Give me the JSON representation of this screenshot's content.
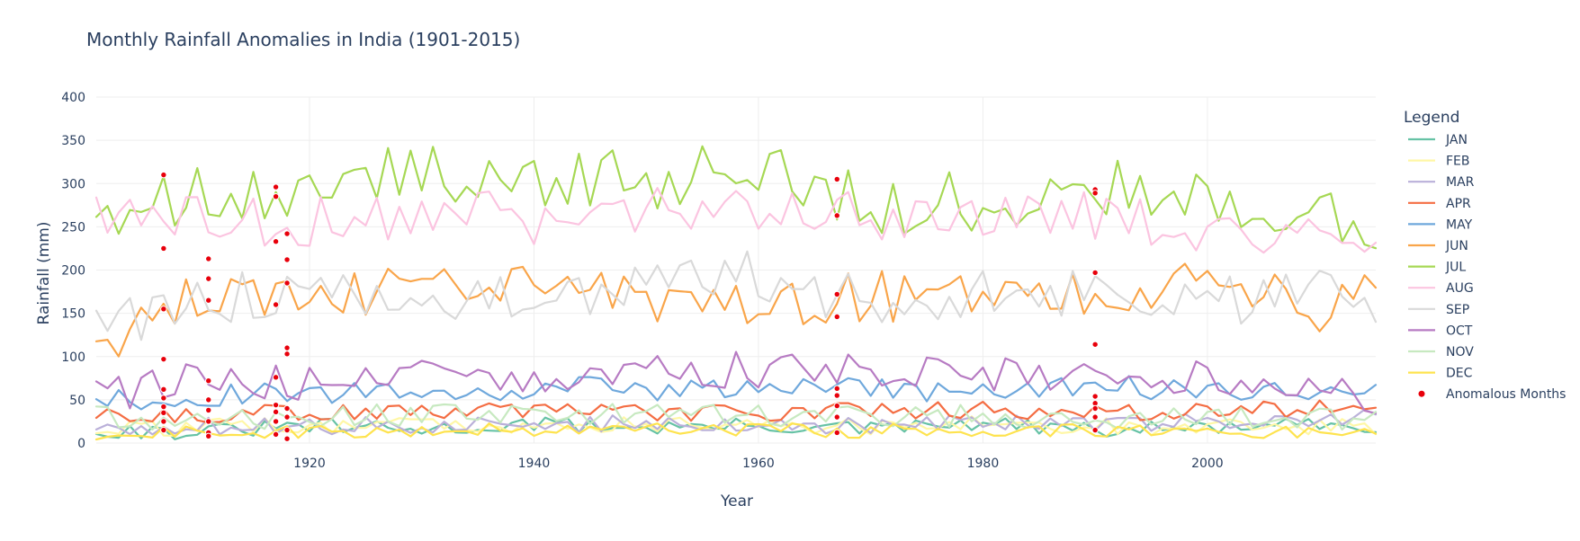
{
  "chart_data": {
    "type": "line",
    "title": "Monthly Rainfall Anomalies in India (1901-2015)",
    "xlabel": "Year",
    "ylabel": "Rainfall (mm)",
    "xlim": [
      1901,
      2015
    ],
    "ylim": [
      0,
      400
    ],
    "x_ticks": [
      1920,
      1940,
      1960,
      1980,
      2000
    ],
    "y_ticks": [
      0,
      50,
      100,
      150,
      200,
      250,
      300,
      350,
      400
    ],
    "grid": true,
    "legend_title": "Legend",
    "legend_position": "right",
    "series": [
      {
        "name": "JAN",
        "color": "#66c2a5",
        "keypoints": [
          [
            1901,
            15
          ],
          [
            1910,
            12
          ],
          [
            1920,
            20
          ],
          [
            1930,
            15
          ],
          [
            1940,
            22
          ],
          [
            1950,
            18
          ],
          [
            1960,
            20
          ],
          [
            1970,
            16
          ],
          [
            1980,
            22
          ],
          [
            1990,
            14
          ],
          [
            2000,
            18
          ],
          [
            2010,
            20
          ],
          [
            2015,
            15
          ]
        ],
        "amp": 9,
        "lo": 2
      },
      {
        "name": "FEB",
        "color": "#fff7a6",
        "keypoints": [
          [
            1901,
            15
          ],
          [
            1910,
            18
          ],
          [
            1920,
            20
          ],
          [
            1930,
            22
          ],
          [
            1940,
            20
          ],
          [
            1950,
            22
          ],
          [
            1960,
            20
          ],
          [
            1970,
            20
          ],
          [
            1980,
            22
          ],
          [
            1990,
            20
          ],
          [
            2000,
            18
          ],
          [
            2010,
            20
          ],
          [
            2015,
            20
          ]
        ],
        "amp": 10,
        "lo": 2
      },
      {
        "name": "MAR",
        "color": "#bab0d9",
        "keypoints": [
          [
            1901,
            18
          ],
          [
            1910,
            20
          ],
          [
            1920,
            18
          ],
          [
            1930,
            22
          ],
          [
            1940,
            20
          ],
          [
            1950,
            25
          ],
          [
            1960,
            22
          ],
          [
            1970,
            20
          ],
          [
            1980,
            25
          ],
          [
            1990,
            22
          ],
          [
            2000,
            25
          ],
          [
            2010,
            28
          ],
          [
            2015,
            30
          ]
        ],
        "amp": 10,
        "lo": 3
      },
      {
        "name": "APR",
        "color": "#f46d43",
        "keypoints": [
          [
            1901,
            30
          ],
          [
            1910,
            33
          ],
          [
            1920,
            35
          ],
          [
            1930,
            38
          ],
          [
            1940,
            35
          ],
          [
            1950,
            35
          ],
          [
            1960,
            35
          ],
          [
            1970,
            38
          ],
          [
            1980,
            38
          ],
          [
            1990,
            35
          ],
          [
            2000,
            38
          ],
          [
            2010,
            40
          ],
          [
            2015,
            45
          ]
        ],
        "amp": 10,
        "lo": 10
      },
      {
        "name": "MAY",
        "color": "#6fa8dc",
        "keypoints": [
          [
            1901,
            50
          ],
          [
            1910,
            55
          ],
          [
            1920,
            55
          ],
          [
            1930,
            60
          ],
          [
            1940,
            65
          ],
          [
            1950,
            62
          ],
          [
            1960,
            65
          ],
          [
            1970,
            62
          ],
          [
            1980,
            60
          ],
          [
            1990,
            65
          ],
          [
            2000,
            60
          ],
          [
            2010,
            58
          ],
          [
            2015,
            55
          ]
        ],
        "amp": 14,
        "lo": 25
      },
      {
        "name": "JUN",
        "color": "#f9a54a",
        "keypoints": [
          [
            1901,
            112
          ],
          [
            1905,
            140
          ],
          [
            1910,
            175
          ],
          [
            1920,
            180
          ],
          [
            1930,
            175
          ],
          [
            1940,
            185
          ],
          [
            1950,
            170
          ],
          [
            1960,
            165
          ],
          [
            1970,
            170
          ],
          [
            1980,
            170
          ],
          [
            1990,
            175
          ],
          [
            2000,
            185
          ],
          [
            2010,
            155
          ],
          [
            2015,
            175
          ]
        ],
        "amp": 30,
        "lo": 85
      },
      {
        "name": "JUL",
        "color": "#a6d854",
        "keypoints": [
          [
            1901,
            250
          ],
          [
            1910,
            285
          ],
          [
            1920,
            300
          ],
          [
            1930,
            310
          ],
          [
            1940,
            310
          ],
          [
            1950,
            305
          ],
          [
            1960,
            315
          ],
          [
            1970,
            275
          ],
          [
            1980,
            280
          ],
          [
            1990,
            300
          ],
          [
            2000,
            280
          ],
          [
            2010,
            275
          ],
          [
            2015,
            245
          ]
        ],
        "amp": 35,
        "lo": 140
      },
      {
        "name": "AUG",
        "color": "#fbc4e0",
        "keypoints": [
          [
            1901,
            270
          ],
          [
            1910,
            260
          ],
          [
            1920,
            255
          ],
          [
            1930,
            265
          ],
          [
            1940,
            260
          ],
          [
            1950,
            265
          ],
          [
            1960,
            270
          ],
          [
            1970,
            260
          ],
          [
            1980,
            260
          ],
          [
            1990,
            265
          ],
          [
            2000,
            235
          ],
          [
            2010,
            265
          ],
          [
            2015,
            210
          ]
        ],
        "amp": 30,
        "lo": 180
      },
      {
        "name": "SEP",
        "color": "#d9d9d9",
        "keypoints": [
          [
            1901,
            135
          ],
          [
            1910,
            165
          ],
          [
            1920,
            180
          ],
          [
            1930,
            175
          ],
          [
            1940,
            170
          ],
          [
            1950,
            175
          ],
          [
            1960,
            195
          ],
          [
            1970,
            160
          ],
          [
            1980,
            170
          ],
          [
            1990,
            175
          ],
          [
            2000,
            160
          ],
          [
            2010,
            185
          ],
          [
            2015,
            140
          ]
        ],
        "amp": 30,
        "lo": 100
      },
      {
        "name": "OCT",
        "color": "#b77bc3",
        "keypoints": [
          [
            1901,
            55
          ],
          [
            1910,
            75
          ],
          [
            1920,
            70
          ],
          [
            1930,
            85
          ],
          [
            1940,
            80
          ],
          [
            1950,
            80
          ],
          [
            1960,
            85
          ],
          [
            1970,
            80
          ],
          [
            1980,
            75
          ],
          [
            1990,
            80
          ],
          [
            2000,
            75
          ],
          [
            2010,
            70
          ],
          [
            2015,
            50
          ]
        ],
        "amp": 22,
        "lo": 30
      },
      {
        "name": "NOV",
        "color": "#c7e9c0",
        "keypoints": [
          [
            1901,
            30
          ],
          [
            1910,
            28
          ],
          [
            1920,
            30
          ],
          [
            1930,
            32
          ],
          [
            1940,
            30
          ],
          [
            1950,
            32
          ],
          [
            1960,
            30
          ],
          [
            1970,
            28
          ],
          [
            1980,
            32
          ],
          [
            1990,
            30
          ],
          [
            2000,
            28
          ],
          [
            2010,
            30
          ],
          [
            2015,
            28
          ]
        ],
        "amp": 14,
        "lo": 3
      },
      {
        "name": "DEC",
        "color": "#fee34f",
        "keypoints": [
          [
            1901,
            12
          ],
          [
            1910,
            12
          ],
          [
            1920,
            14
          ],
          [
            1930,
            15
          ],
          [
            1940,
            15
          ],
          [
            1950,
            16
          ],
          [
            1960,
            15
          ],
          [
            1970,
            14
          ],
          [
            1980,
            15
          ],
          [
            1990,
            14
          ],
          [
            2000,
            12
          ],
          [
            2010,
            14
          ],
          [
            2015,
            12
          ]
        ],
        "amp": 8,
        "lo": 1
      }
    ],
    "anomalies": {
      "name": "Anomalous Months",
      "color": "#e8000b",
      "points": [
        [
          1907,
          310
        ],
        [
          1907,
          225
        ],
        [
          1907,
          155
        ],
        [
          1907,
          97
        ],
        [
          1907,
          62
        ],
        [
          1907,
          52
        ],
        [
          1907,
          42
        ],
        [
          1907,
          35
        ],
        [
          1907,
          25
        ],
        [
          1907,
          15
        ],
        [
          1911,
          213
        ],
        [
          1911,
          190
        ],
        [
          1911,
          165
        ],
        [
          1911,
          72
        ],
        [
          1911,
          50
        ],
        [
          1911,
          38
        ],
        [
          1911,
          25
        ],
        [
          1911,
          12
        ],
        [
          1911,
          8
        ],
        [
          1917,
          296
        ],
        [
          1917,
          285
        ],
        [
          1917,
          233
        ],
        [
          1917,
          160
        ],
        [
          1917,
          76
        ],
        [
          1917,
          44
        ],
        [
          1917,
          36
        ],
        [
          1917,
          25
        ],
        [
          1917,
          10
        ],
        [
          1918,
          242
        ],
        [
          1918,
          212
        ],
        [
          1918,
          185
        ],
        [
          1918,
          110
        ],
        [
          1918,
          103
        ],
        [
          1918,
          40
        ],
        [
          1918,
          30
        ],
        [
          1918,
          15
        ],
        [
          1918,
          5
        ],
        [
          1967,
          305
        ],
        [
          1967,
          263
        ],
        [
          1967,
          172
        ],
        [
          1967,
          146
        ],
        [
          1967,
          63
        ],
        [
          1967,
          55
        ],
        [
          1967,
          43
        ],
        [
          1967,
          30
        ],
        [
          1967,
          12
        ],
        [
          1990,
          293
        ],
        [
          1990,
          289
        ],
        [
          1990,
          197
        ],
        [
          1990,
          114
        ],
        [
          1990,
          54
        ],
        [
          1990,
          46
        ],
        [
          1990,
          40
        ],
        [
          1990,
          30
        ],
        [
          1990,
          15
        ]
      ]
    }
  }
}
